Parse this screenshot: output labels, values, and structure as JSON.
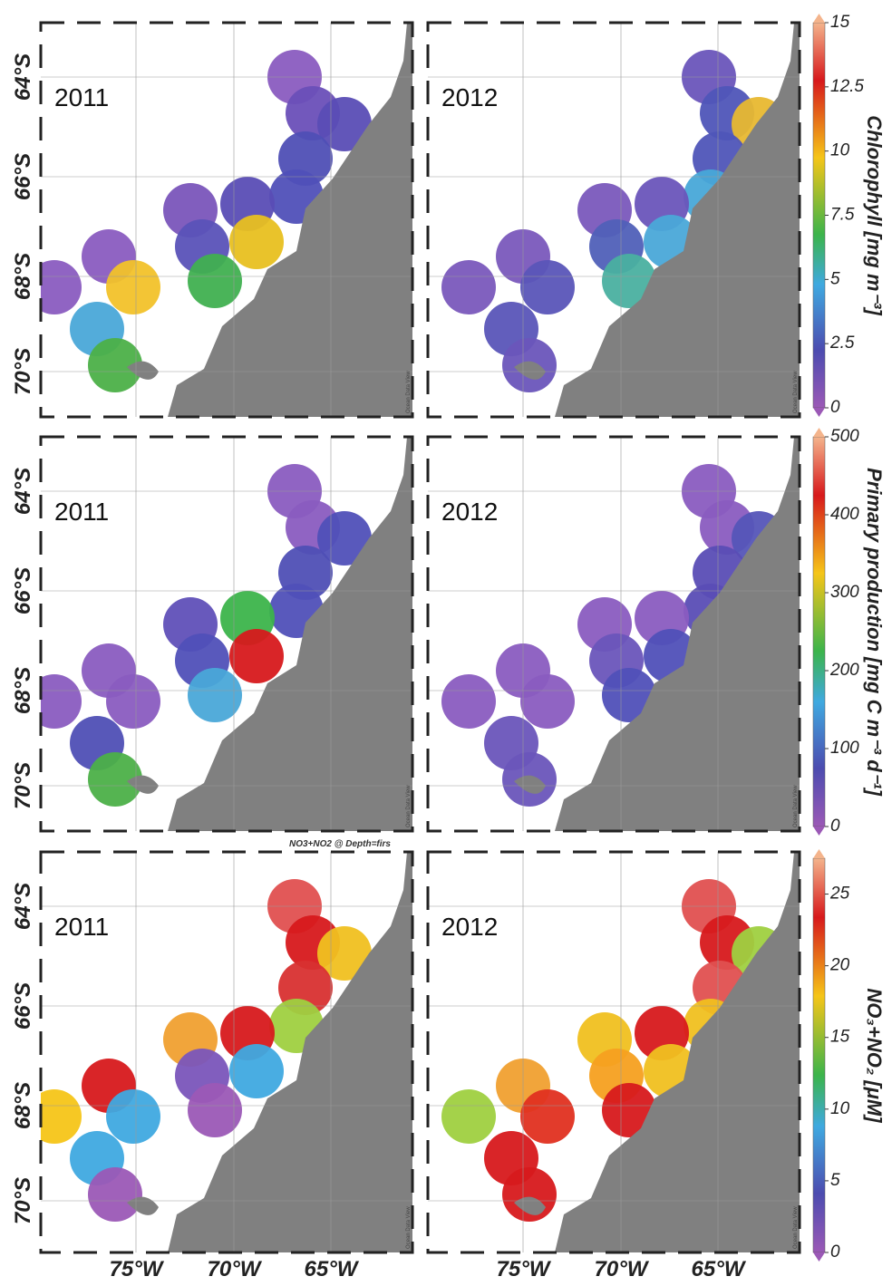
{
  "panels": [
    {
      "year": "2011"
    },
    {
      "year": "2012"
    },
    {
      "year": "2011"
    },
    {
      "year": "2012"
    },
    {
      "year": "2011"
    },
    {
      "year": "2012"
    }
  ],
  "latitude_labels": [
    "64°S",
    "66°S",
    "68°S",
    "70°S"
  ],
  "longitude_labels": [
    "75°W",
    "70°W",
    "65°W"
  ],
  "section_note": "NO3+NO2 @ Depth=firs",
  "watermark": "Ocean Data View",
  "colorbars": [
    {
      "title": "Chlorophyll [mg m⁻³]",
      "range": [
        0,
        15
      ],
      "ticks": [
        0,
        2.5,
        5,
        7.5,
        10,
        12.5,
        15
      ]
    },
    {
      "title": "Primary production [mg C m⁻³ d⁻¹]",
      "range": [
        0,
        500
      ],
      "ticks": [
        0,
        100,
        200,
        300,
        400,
        500
      ]
    },
    {
      "title": "NO₃+NO₂ [μM]",
      "range": [
        0,
        27.5
      ],
      "ticks": [
        0,
        5,
        10,
        15,
        20,
        25
      ]
    }
  ]
}
